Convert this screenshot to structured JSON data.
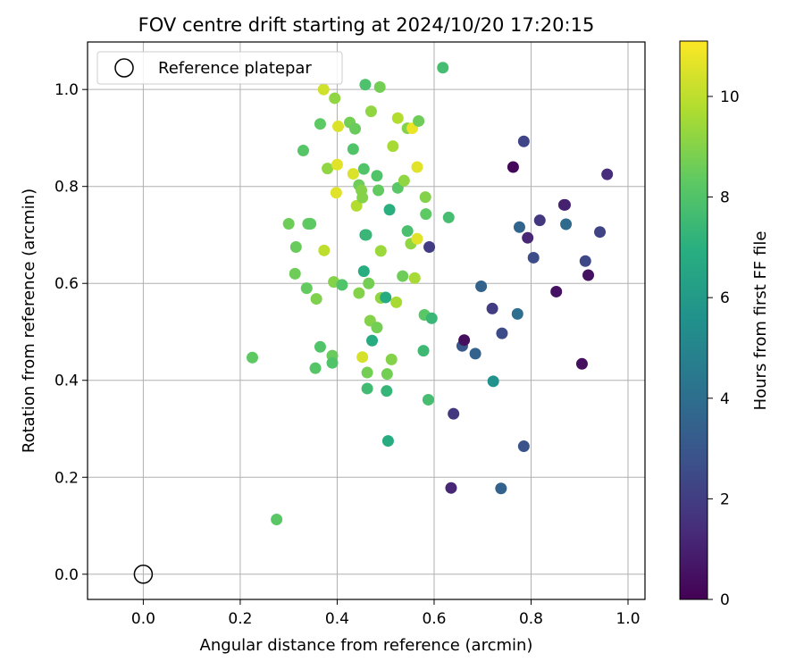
{
  "chart_data": {
    "type": "scatter",
    "title": "FOV centre drift starting at 2024/10/20 17:20:15",
    "xlabel": "Angular distance from reference (arcmin)",
    "ylabel": "Rotation from reference (arcmin)",
    "xlim": [
      -0.115,
      1.035
    ],
    "ylim": [
      -0.052,
      1.098
    ],
    "xticks": [
      "0.0",
      "0.2",
      "0.4",
      "0.6",
      "0.8",
      "1.0"
    ],
    "yticks": [
      "0.0",
      "0.2",
      "0.4",
      "0.6",
      "0.8",
      "1.0"
    ],
    "grid": true,
    "legend": {
      "placement": "upper-left",
      "entries": [
        "Reference platepar"
      ]
    },
    "reference_point": {
      "x": 0.0,
      "y": 0.0
    },
    "colorbar": {
      "label": "Hours from first FF file",
      "colormap": "viridis",
      "range": [
        0,
        11.1
      ],
      "ticks": [
        "0",
        "2",
        "4",
        "6",
        "8",
        "10"
      ]
    },
    "points": [
      [
        0.225,
        0.447,
        8.3
      ],
      [
        0.275,
        0.113,
        8.2
      ],
      [
        0.3,
        0.723,
        8.6
      ],
      [
        0.315,
        0.675,
        8.5
      ],
      [
        0.313,
        0.62,
        8.6
      ],
      [
        0.33,
        0.874,
        8.1
      ],
      [
        0.337,
        0.59,
        8.4
      ],
      [
        0.34,
        0.723,
        8.4
      ],
      [
        0.345,
        0.723,
        8.3
      ],
      [
        0.355,
        0.425,
        8.1
      ],
      [
        0.357,
        0.568,
        8.9
      ],
      [
        0.365,
        0.469,
        8.0
      ],
      [
        0.365,
        0.929,
        8.3
      ],
      [
        0.372,
        1.0,
        10.3
      ],
      [
        0.373,
        0.668,
        10.0
      ],
      [
        0.38,
        0.837,
        9.2
      ],
      [
        0.39,
        0.451,
        8.5
      ],
      [
        0.39,
        0.436,
        8.0
      ],
      [
        0.393,
        0.603,
        9.0
      ],
      [
        0.395,
        0.982,
        9.2
      ],
      [
        0.398,
        0.787,
        10.6
      ],
      [
        0.4,
        0.845,
        10.6
      ],
      [
        0.402,
        0.924,
        10.5
      ],
      [
        0.41,
        0.597,
        8.0
      ],
      [
        0.426,
        0.932,
        8.7
      ],
      [
        0.433,
        0.877,
        8.0
      ],
      [
        0.433,
        0.826,
        10.5
      ],
      [
        0.437,
        0.919,
        8.5
      ],
      [
        0.44,
        0.76,
        9.8
      ],
      [
        0.445,
        0.803,
        8.6
      ],
      [
        0.445,
        0.58,
        9.0
      ],
      [
        0.45,
        0.792,
        9.0
      ],
      [
        0.452,
        0.777,
        9.0
      ],
      [
        0.452,
        0.448,
        10.4
      ],
      [
        0.455,
        0.836,
        8.0
      ],
      [
        0.455,
        0.625,
        6.9
      ],
      [
        0.458,
        0.7,
        6.8
      ],
      [
        0.458,
        1.01,
        7.9
      ],
      [
        0.46,
        0.7,
        7.4
      ],
      [
        0.462,
        0.416,
        8.7
      ],
      [
        0.462,
        0.383,
        7.6
      ],
      [
        0.465,
        0.6,
        8.7
      ],
      [
        0.468,
        0.523,
        9.0
      ],
      [
        0.47,
        0.955,
        9.2
      ],
      [
        0.472,
        0.482,
        6.8
      ],
      [
        0.482,
        0.822,
        8.0
      ],
      [
        0.482,
        0.509,
        8.7
      ],
      [
        0.485,
        0.792,
        8.4
      ],
      [
        0.488,
        1.005,
        8.7
      ],
      [
        0.49,
        0.57,
        9.2
      ],
      [
        0.49,
        0.667,
        9.4
      ],
      [
        0.5,
        0.571,
        6.8
      ],
      [
        0.502,
        0.378,
        7.3
      ],
      [
        0.503,
        0.413,
        8.7
      ],
      [
        0.505,
        0.275,
        6.8
      ],
      [
        0.508,
        0.752,
        7.0
      ],
      [
        0.512,
        0.443,
        9.0
      ],
      [
        0.515,
        0.883,
        9.6
      ],
      [
        0.522,
        0.561,
        9.6
      ],
      [
        0.525,
        0.941,
        9.8
      ],
      [
        0.525,
        0.797,
        8.2
      ],
      [
        0.535,
        0.615,
        8.6
      ],
      [
        0.538,
        0.812,
        9.2
      ],
      [
        0.545,
        0.92,
        9.0
      ],
      [
        0.545,
        0.708,
        7.8
      ],
      [
        0.552,
        0.682,
        9.2
      ],
      [
        0.555,
        0.92,
        10.8
      ],
      [
        0.56,
        0.611,
        9.6
      ],
      [
        0.565,
        0.84,
        10.6
      ],
      [
        0.565,
        0.692,
        10.6
      ],
      [
        0.568,
        0.935,
        8.6
      ],
      [
        0.578,
        0.461,
        7.5
      ],
      [
        0.58,
        0.535,
        8.2
      ],
      [
        0.582,
        0.778,
        9.0
      ],
      [
        0.583,
        0.743,
        8.3
      ],
      [
        0.588,
        0.36,
        7.7
      ],
      [
        0.59,
        0.675,
        2.0
      ],
      [
        0.595,
        0.528,
        7.4
      ],
      [
        0.618,
        1.045,
        7.7
      ],
      [
        0.63,
        0.736,
        7.7
      ],
      [
        0.635,
        0.178,
        1.2
      ],
      [
        0.64,
        0.331,
        1.8
      ],
      [
        0.658,
        0.471,
        3.0
      ],
      [
        0.662,
        0.483,
        0.4
      ],
      [
        0.685,
        0.455,
        3.5
      ],
      [
        0.697,
        0.594,
        3.5
      ],
      [
        0.72,
        0.548,
        2.0
      ],
      [
        0.722,
        0.398,
        5.6
      ],
      [
        0.738,
        0.177,
        3.5
      ],
      [
        0.74,
        0.497,
        2.5
      ],
      [
        0.763,
        0.84,
        0.2
      ],
      [
        0.772,
        0.537,
        4.0
      ],
      [
        0.776,
        0.716,
        3.6
      ],
      [
        0.785,
        0.893,
        2.3
      ],
      [
        0.785,
        0.264,
        2.8
      ],
      [
        0.793,
        0.694,
        1.2
      ],
      [
        0.805,
        0.653,
        2.6
      ],
      [
        0.818,
        0.73,
        1.8
      ],
      [
        0.852,
        0.583,
        0.5
      ],
      [
        0.868,
        0.762,
        1.2
      ],
      [
        0.87,
        0.762,
        1.0
      ],
      [
        0.872,
        0.722,
        3.8
      ],
      [
        0.905,
        0.434,
        0.4
      ],
      [
        0.912,
        0.646,
        2.4
      ],
      [
        0.918,
        0.617,
        0.5
      ],
      [
        0.942,
        0.706,
        2.2
      ],
      [
        0.957,
        0.825,
        1.4
      ]
    ]
  }
}
